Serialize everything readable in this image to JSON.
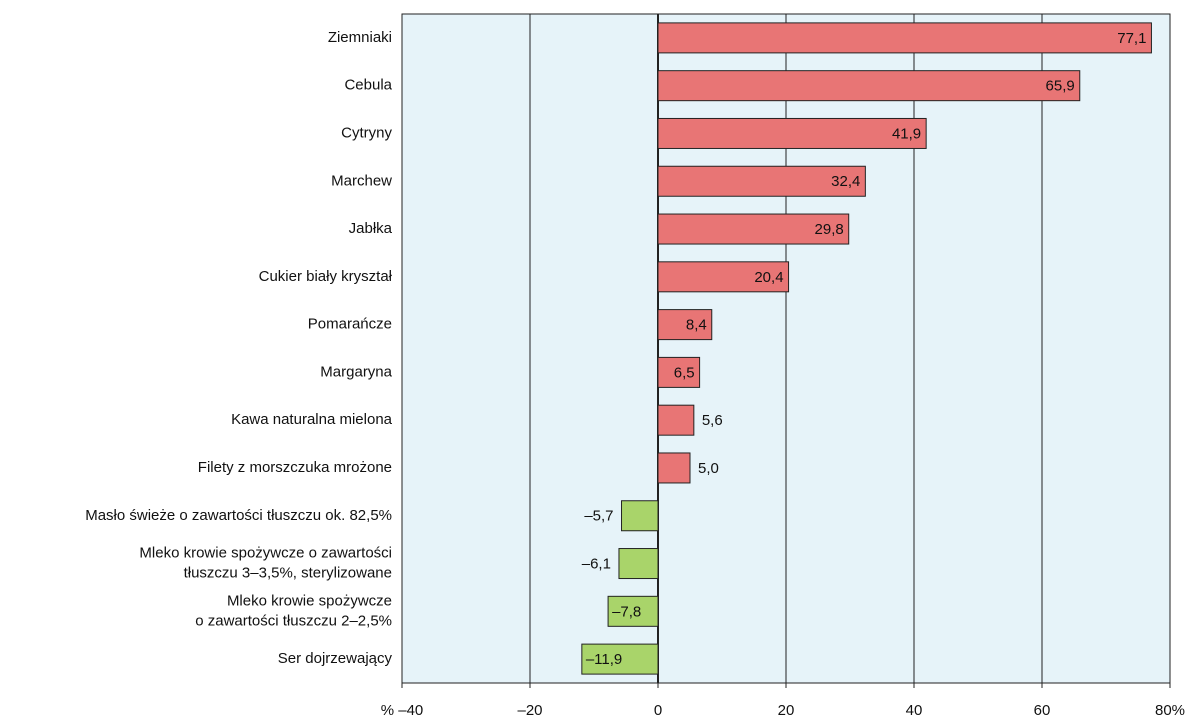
{
  "chart_data": {
    "type": "barh",
    "categories": [
      "Ziemniaki",
      "Cebula",
      "Cytryny",
      "Marchew",
      "Jabłka",
      "Cukier biały kryształ",
      "Pomarańcze",
      "Margaryna",
      "Kawa naturalna mielona",
      "Filety z morszczuka mrożone",
      "Masło świeże o zawartości tłuszczu ok. 82,5%",
      "Mleko krowie spożywcze o zawartości\ntłuszczu 3–3,5%, sterylizowane",
      "Mleko krowie spożywcze\no zawartości tłuszczu 2–2,5%",
      "Ser dojrzewający"
    ],
    "values": [
      77.1,
      65.9,
      41.9,
      32.4,
      29.8,
      20.4,
      8.4,
      6.5,
      5.6,
      5.0,
      -5.7,
      -6.1,
      -7.8,
      -11.9
    ],
    "value_labels": [
      "77,1",
      "65,9",
      "41,9",
      "32,4",
      "29,8",
      "20,4",
      "8,4",
      "6,5",
      "5,6",
      "5,0",
      "–5,7",
      "–6,1",
      "–7,8",
      "–11,9"
    ],
    "positive_color": "#e87575",
    "negative_color": "#a9d46a",
    "xlim": [
      -40,
      80
    ],
    "xticks": [
      {
        "value": -40,
        "label": "% –40"
      },
      {
        "value": -20,
        "label": "–20"
      },
      0,
      20,
      40,
      60,
      {
        "value": 80,
        "label": "80%"
      }
    ],
    "grid": true
  }
}
